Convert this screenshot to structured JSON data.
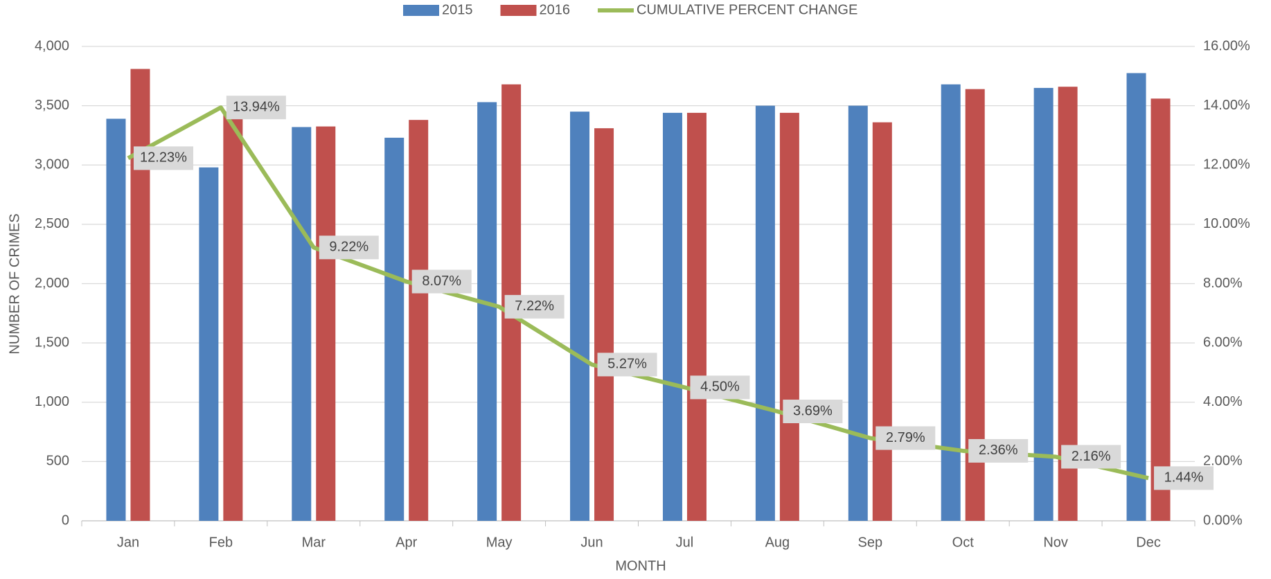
{
  "chart_data": {
    "type": "bar-line",
    "x_label": "MONTH",
    "y_label": "NUMBER OF CRIMES",
    "categories": [
      "Jan",
      "Feb",
      "Mar",
      "Apr",
      "May",
      "Jun",
      "Jul",
      "Aug",
      "Sep",
      "Oct",
      "Nov",
      "Dec"
    ],
    "series": [
      {
        "name": "2015",
        "type": "bar",
        "color": "#4f81bd",
        "values": [
          3390,
          2980,
          3320,
          3230,
          3530,
          3450,
          3440,
          3500,
          3500,
          3680,
          3650,
          3775
        ]
      },
      {
        "name": "2016",
        "type": "bar",
        "color": "#c0504d",
        "values": [
          3810,
          3450,
          3325,
          3380,
          3680,
          3310,
          3440,
          3440,
          3360,
          3640,
          3660,
          3560
        ]
      },
      {
        "name": "CUMULATIVE PERCENT CHANGE",
        "type": "line",
        "axis": "y2",
        "color": "#9bbb59",
        "values": [
          12.23,
          13.94,
          9.22,
          8.07,
          7.22,
          5.27,
          4.5,
          3.69,
          2.79,
          2.36,
          2.16,
          1.44
        ],
        "value_labels": [
          "12.23%",
          "13.94%",
          "9.22%",
          "8.07%",
          "7.22%",
          "5.27%",
          "4.50%",
          "3.69%",
          "2.79%",
          "2.36%",
          "2.16%",
          "1.44%"
        ]
      }
    ],
    "ylim": [
      0,
      4000
    ],
    "yticks": [
      0,
      500,
      {
        "value": 1000,
        "label": "1,000"
      },
      {
        "value": 1500,
        "label": "1,500"
      },
      {
        "value": 2000,
        "label": "2,000"
      },
      {
        "value": 2500,
        "label": "2,500"
      },
      {
        "value": 3000,
        "label": "3,000"
      },
      {
        "value": 3500,
        "label": "3,500"
      },
      {
        "value": 4000,
        "label": "4,000"
      }
    ],
    "y2lim": [
      0,
      16
    ],
    "y2ticks": [
      {
        "value": 0,
        "label": "0.00%"
      },
      {
        "value": 2,
        "label": "2.00%"
      },
      {
        "value": 4,
        "label": "4.00%"
      },
      {
        "value": 6,
        "label": "6.00%"
      },
      {
        "value": 8,
        "label": "8.00%"
      },
      {
        "value": 10,
        "label": "10.00%"
      },
      {
        "value": 12,
        "label": "12.00%"
      },
      {
        "value": 14,
        "label": "14.00%"
      },
      {
        "value": 16,
        "label": "16.00%"
      }
    ],
    "grid": true,
    "legend": "top"
  }
}
